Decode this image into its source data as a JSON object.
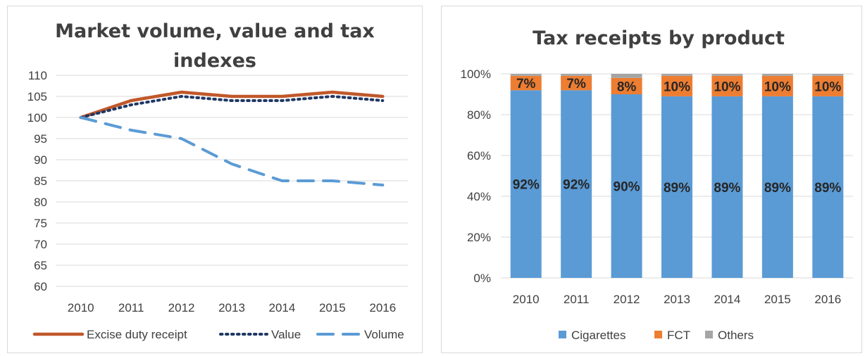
{
  "chart_data": [
    {
      "type": "line",
      "title": "Market volume, value and tax indexes",
      "title_lines": [
        "Market volume, value and tax",
        "indexes"
      ],
      "x": [
        "2010",
        "2011",
        "2012",
        "2013",
        "2014",
        "2015",
        "2016"
      ],
      "ylim": [
        60,
        110
      ],
      "yticks": [
        "110",
        "105",
        "100",
        "95",
        "90",
        "85",
        "80",
        "75",
        "70",
        "65",
        "60"
      ],
      "grid": true,
      "legend_position": "bottom",
      "series": [
        {
          "name": "Excise duty receipt",
          "values": [
            100,
            104,
            106,
            105,
            105,
            106,
            105
          ],
          "color": "#C0582A",
          "style": "solid"
        },
        {
          "name": "Value",
          "values": [
            100,
            103,
            105,
            104,
            104,
            105,
            104
          ],
          "color": "#1F3864",
          "style": "dotted"
        },
        {
          "name": "Volume",
          "values": [
            100,
            97,
            95,
            89,
            85,
            85,
            84
          ],
          "color": "#5B9BD5",
          "style": "dashed"
        }
      ]
    },
    {
      "type": "bar",
      "stacked": true,
      "title": "Tax receipts by product",
      "categories": [
        "2010",
        "2011",
        "2012",
        "2013",
        "2014",
        "2015",
        "2016"
      ],
      "ylim": [
        0,
        100
      ],
      "yticks": [
        "100%",
        "80%",
        "60%",
        "40%",
        "20%",
        "0%"
      ],
      "grid": true,
      "legend_position": "bottom",
      "series": [
        {
          "name": "Cigarettes",
          "values": [
            92,
            92,
            90,
            89,
            89,
            89,
            89
          ],
          "labels": [
            "92%",
            "92%",
            "90%",
            "89%",
            "89%",
            "89%",
            "89%"
          ],
          "color": "#5B9BD5"
        },
        {
          "name": "FCT",
          "values": [
            7,
            7,
            8,
            10,
            10,
            10,
            10
          ],
          "labels": [
            "7%",
            "7%",
            "8%",
            "10%",
            "10%",
            "10%",
            "10%"
          ],
          "color": "#ED7D31"
        },
        {
          "name": "Others",
          "values": [
            1,
            1,
            2,
            1,
            1,
            1,
            1
          ],
          "color": "#A5A5A5"
        }
      ]
    }
  ]
}
